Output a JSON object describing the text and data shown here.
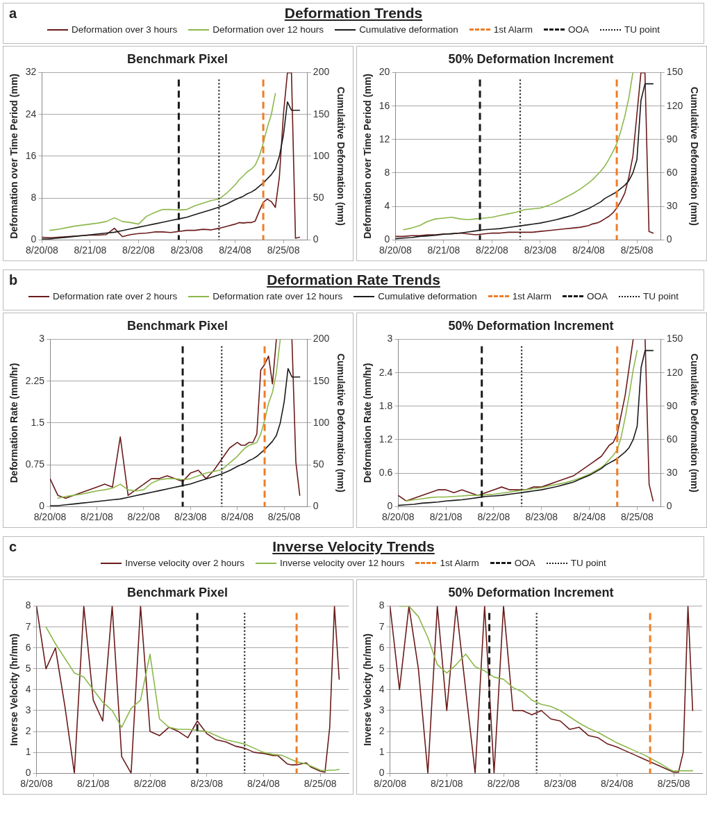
{
  "chart_data": [
    {
      "type": "line",
      "title": "Benchmark Pixel",
      "ylabel": "Deformation over Time Period (mm)",
      "y2label": "Cumulative Deformation (mm)",
      "legend": "top",
      "legend_title": "Deformation Trends",
      "annotations": [
        "a"
      ],
      "grid": "y",
      "marker": "none",
      "x": [
        "--08-20T00:00",
        "--08-20T04:00",
        "--08-20T08:00",
        "--08-20T12:00",
        "--08-20T16:00",
        "--08-20T20:00",
        "--08-21T00:00",
        "--08-21T04:00",
        "--08-21T08:00",
        "--08-21T12:00",
        "--08-21T16:00",
        "--08-21T20:00",
        "--08-22T00:00",
        "--08-22T04:00",
        "--08-22T08:00",
        "--08-22T12:00",
        "--08-22T16:00",
        "--08-22T20:00",
        "--08-23T00:00",
        "--08-23T04:00",
        "--08-23T08:00",
        "--08-23T12:00",
        "--08-23T16:00",
        "--08-23T20:00",
        "--08-24T00:00",
        "--08-24T02:00",
        "--08-24T04:00",
        "--08-24T06:00",
        "--08-24T08:00",
        "--08-24T10:00",
        "--08-24T12:00",
        "--08-24T14:00",
        "--08-24T16:00",
        "--08-24T18:00",
        "--08-24T20:00",
        "--08-24T22:00",
        "--08-25T00:00",
        "--08-25T02:00",
        "--08-25T04:00",
        "--08-25T06:00",
        "--08-25T08:00"
      ],
      "xlim": [
        "--08-20",
        "--08-25T12:00"
      ],
      "xticks": [
        {
          "value": "--08-20",
          "label": "8/20/08"
        },
        {
          "value": "--08-21",
          "label": "8/21/08"
        },
        {
          "value": "--08-22",
          "label": "8/22/08"
        },
        {
          "value": "--08-23",
          "label": "8/23/08"
        },
        {
          "value": "--08-24",
          "label": "8/24/08"
        },
        {
          "value": "--08-25",
          "label": "8/25/08"
        }
      ],
      "ylim": [
        0,
        32
      ],
      "yticks": [
        0,
        8,
        16,
        24,
        32
      ],
      "y2lim": [
        0,
        200
      ],
      "y2ticks": [
        0,
        50,
        100,
        150,
        200
      ],
      "series": [
        {
          "name": "Deformation over 3 hours",
          "color": "#6b1a1a",
          "values": [
            0.5,
            0.4,
            0.5,
            0.6,
            0.7,
            0.8,
            0.9,
            0.9,
            1.0,
            2.2,
            0.6,
            1.0,
            1.2,
            1.3,
            1.5,
            1.5,
            1.4,
            1.6,
            1.8,
            1.8,
            2.0,
            1.9,
            2.2,
            2.6,
            3.0,
            3.3,
            3.2,
            3.3,
            3.3,
            3.6,
            5.5,
            7.2,
            7.8,
            7.3,
            6.2,
            12,
            24,
            32,
            32,
            0.3,
            0.5
          ]
        },
        {
          "name": "Deformation over 12 hours",
          "color": "#8cb84a",
          "values": [
            null,
            1.8,
            2.0,
            2.3,
            2.6,
            2.8,
            3.0,
            3.2,
            3.5,
            4.2,
            3.5,
            3.3,
            3.0,
            4.5,
            5.2,
            5.8,
            5.8,
            5.7,
            5.8,
            6.5,
            7.0,
            7.5,
            7.8,
            9.0,
            10.5,
            11.5,
            12.2,
            13.0,
            13.5,
            14.3,
            16,
            18.5,
            21.5,
            24,
            28,
            null,
            null,
            null,
            null,
            null,
            null
          ]
        },
        {
          "name": "Cumulative deformation",
          "color": "#1a1a1a",
          "axis": "y2",
          "values": [
            1,
            1,
            2,
            3,
            4,
            5,
            6,
            7,
            8,
            9,
            11,
            13,
            15,
            17,
            19,
            21,
            23,
            25,
            27,
            30,
            33,
            36,
            39,
            43,
            48,
            50,
            52,
            55,
            57,
            60,
            64,
            68,
            73,
            78,
            85,
            100,
            125,
            165,
            155,
            155,
            155
          ]
        }
      ],
      "ref_lines": [
        {
          "axis": "x",
          "value": "--08-24T14:00",
          "label": "1st Alarm",
          "color": "#f07c24",
          "line_style": "dashed"
        },
        {
          "axis": "x",
          "value": "--08-22T20:00",
          "label": "OOA",
          "color": "#1a1a1a",
          "line_style": "dashed"
        },
        {
          "axis": "x",
          "value": "--08-23T16:00",
          "label": "TU point",
          "color": "#1a1a1a",
          "line_style": "dotted"
        }
      ]
    },
    {
      "type": "line",
      "title": "50% Deformation Increment",
      "ylabel": "Deformation over Time Period (mm)",
      "y2label": "Cumulative Deformation (mm)",
      "grid": "y",
      "marker": "none",
      "x": [
        "--08-20T00:00",
        "--08-20T04:00",
        "--08-20T08:00",
        "--08-20T12:00",
        "--08-20T16:00",
        "--08-20T20:00",
        "--08-21T00:00",
        "--08-21T04:00",
        "--08-21T08:00",
        "--08-21T12:00",
        "--08-21T16:00",
        "--08-21T20:00",
        "--08-22T00:00",
        "--08-22T04:00",
        "--08-22T08:00",
        "--08-22T12:00",
        "--08-22T16:00",
        "--08-22T20:00",
        "--08-23T00:00",
        "--08-23T04:00",
        "--08-23T08:00",
        "--08-23T12:00",
        "--08-23T16:00",
        "--08-23T20:00",
        "--08-24T00:00",
        "--08-24T02:00",
        "--08-24T04:00",
        "--08-24T06:00",
        "--08-24T08:00",
        "--08-24T10:00",
        "--08-24T12:00",
        "--08-24T14:00",
        "--08-24T16:00",
        "--08-24T18:00",
        "--08-24T20:00",
        "--08-24T22:00",
        "--08-25T00:00",
        "--08-25T02:00",
        "--08-25T04:00",
        "--08-25T06:00",
        "--08-25T08:00"
      ],
      "xlim": [
        "--08-20",
        "--08-25T12:00"
      ],
      "xticks": [
        {
          "value": "--08-20",
          "label": "8/20/08"
        },
        {
          "value": "--08-21",
          "label": "8/21/08"
        },
        {
          "value": "--08-22",
          "label": "8/22/08"
        },
        {
          "value": "--08-23",
          "label": "8/23/08"
        },
        {
          "value": "--08-24",
          "label": "8/24/08"
        },
        {
          "value": "--08-25",
          "label": "8/25/08"
        }
      ],
      "ylim": [
        0,
        20
      ],
      "yticks": [
        0,
        4,
        8,
        12,
        16,
        20
      ],
      "y2lim": [
        0,
        150
      ],
      "y2ticks": [
        0,
        30,
        60,
        90,
        120,
        150
      ],
      "series": [
        {
          "color": "#6b1a1a",
          "values": [
            0.4,
            0.4,
            0.5,
            0.5,
            0.6,
            0.6,
            0.7,
            0.7,
            0.8,
            0.7,
            0.6,
            0.7,
            0.8,
            0.8,
            0.9,
            0.9,
            0.9,
            0.9,
            1.0,
            1.1,
            1.2,
            1.3,
            1.4,
            1.5,
            1.7,
            1.9,
            2.0,
            2.2,
            2.5,
            2.8,
            3.2,
            3.8,
            4.6,
            5.6,
            7.5,
            10,
            15,
            20,
            20,
            1,
            0.8
          ]
        },
        {
          "color": "#8cb84a",
          "values": [
            null,
            1.2,
            1.4,
            1.7,
            2.2,
            2.5,
            2.6,
            2.7,
            2.5,
            2.4,
            2.5,
            2.6,
            2.7,
            2.9,
            3.1,
            3.3,
            3.6,
            3.7,
            3.8,
            4.1,
            4.5,
            5.0,
            5.5,
            6.1,
            6.8,
            7.2,
            7.7,
            8.2,
            8.8,
            9.6,
            10.5,
            11.5,
            13,
            14.8,
            17,
            20,
            null,
            null,
            null,
            null,
            null
          ]
        },
        {
          "color": "#1a1a1a",
          "axis": "y2",
          "values": [
            1,
            1.5,
            2,
            3,
            3.5,
            4,
            5,
            5.5,
            6,
            7,
            8,
            9,
            9.5,
            10,
            11,
            12,
            13,
            14,
            15,
            16.5,
            18,
            20,
            22,
            25,
            28,
            30,
            32,
            34,
            37,
            39,
            41,
            43,
            46,
            49,
            53,
            60,
            72,
            125,
            140,
            140,
            140
          ]
        }
      ],
      "ref_lines": [
        {
          "axis": "x",
          "value": "--08-24T14:00",
          "color": "#f07c24",
          "line_style": "dashed"
        },
        {
          "axis": "x",
          "value": "--08-21T18:00",
          "color": "#1a1a1a",
          "line_style": "dashed"
        },
        {
          "axis": "x",
          "value": "--08-22T14:00",
          "color": "#1a1a1a",
          "line_style": "dotted"
        }
      ]
    },
    {
      "type": "line",
      "title": "Benchmark Pixel",
      "ylabel": "Deformation Rate (mm/hr)",
      "y2label": "Cumulative Deformation (mm)",
      "legend": "top",
      "legend_title": "Deformation Rate Trends",
      "annotations": [
        "b"
      ],
      "grid": "y",
      "marker": "none",
      "x": [
        "--08-20T00:00",
        "--08-20T04:00",
        "--08-20T08:00",
        "--08-20T12:00",
        "--08-20T16:00",
        "--08-20T20:00",
        "--08-21T00:00",
        "--08-21T04:00",
        "--08-21T08:00",
        "--08-21T12:00",
        "--08-21T16:00",
        "--08-21T20:00",
        "--08-22T00:00",
        "--08-22T04:00",
        "--08-22T08:00",
        "--08-22T12:00",
        "--08-22T16:00",
        "--08-22T20:00",
        "--08-23T00:00",
        "--08-23T04:00",
        "--08-23T08:00",
        "--08-23T12:00",
        "--08-23T16:00",
        "--08-23T20:00",
        "--08-24T00:00",
        "--08-24T02:00",
        "--08-24T04:00",
        "--08-24T06:00",
        "--08-24T08:00",
        "--08-24T10:00",
        "--08-24T12:00",
        "--08-24T14:00",
        "--08-24T16:00",
        "--08-24T18:00",
        "--08-24T20:00",
        "--08-24T22:00",
        "--08-25T00:00",
        "--08-25T02:00",
        "--08-25T04:00",
        "--08-25T06:00",
        "--08-25T08:00"
      ],
      "xlim": [
        "--08-20",
        "--08-25T12:00"
      ],
      "xticks": [
        {
          "value": "--08-20",
          "label": "8/20/08"
        },
        {
          "value": "--08-21",
          "label": "8/21/08"
        },
        {
          "value": "--08-22",
          "label": "8/22/08"
        },
        {
          "value": "--08-23",
          "label": "8/23/08"
        },
        {
          "value": "--08-24",
          "label": "8/24/08"
        },
        {
          "value": "--08-25",
          "label": "8/25/08"
        }
      ],
      "ylim": [
        0,
        3
      ],
      "yticks": [
        0,
        0.75,
        1.5,
        2.25,
        3
      ],
      "y2lim": [
        0,
        200
      ],
      "y2ticks": [
        0,
        50,
        100,
        150,
        200
      ],
      "series": [
        {
          "name": "Deformation rate over 2 hours",
          "color": "#6b1a1a",
          "values": [
            0.5,
            0.2,
            0.15,
            0.2,
            0.25,
            0.3,
            0.35,
            0.4,
            0.35,
            1.25,
            0.2,
            0.3,
            0.4,
            0.5,
            0.5,
            0.55,
            0.5,
            0.45,
            0.6,
            0.65,
            0.5,
            0.65,
            0.85,
            1.05,
            1.15,
            1.1,
            1.1,
            1.15,
            1.15,
            1.3,
            2.45,
            2.55,
            2.7,
            2.2,
            3,
            null,
            null,
            null,
            3,
            0.8,
            0.2
          ]
        },
        {
          "name": "Deformation rate over 12 hours",
          "color": "#8cb84a",
          "values": [
            null,
            0.15,
            0.18,
            0.2,
            0.22,
            0.25,
            0.28,
            0.3,
            0.33,
            0.4,
            0.3,
            0.28,
            0.3,
            0.42,
            0.48,
            0.5,
            0.5,
            0.48,
            0.5,
            0.55,
            0.6,
            0.63,
            0.66,
            0.78,
            0.9,
            0.98,
            1.05,
            1.1,
            1.12,
            1.15,
            1.3,
            1.55,
            1.85,
            2.05,
            2.4,
            3.0,
            null,
            null,
            null,
            null,
            null
          ]
        },
        {
          "name": "Cumulative deformation",
          "color": "#1a1a1a",
          "axis": "y2",
          "values": [
            1,
            1,
            2,
            3,
            4,
            5,
            6,
            7,
            8,
            9,
            11,
            13,
            15,
            17,
            19,
            21,
            23,
            25,
            27,
            30,
            33,
            36,
            39,
            43,
            48,
            50,
            52,
            55,
            57,
            60,
            64,
            68,
            73,
            78,
            85,
            100,
            125,
            165,
            155,
            155,
            155
          ]
        }
      ],
      "ref_lines": [
        {
          "axis": "x",
          "value": "--08-24T14:00",
          "label": "1st Alarm",
          "color": "#f07c24",
          "line_style": "dashed"
        },
        {
          "axis": "x",
          "value": "--08-22T20:00",
          "label": "OOA",
          "color": "#1a1a1a",
          "line_style": "dashed"
        },
        {
          "axis": "x",
          "value": "--08-23T16:00",
          "label": "TU point",
          "color": "#1a1a1a",
          "line_style": "dotted"
        }
      ]
    },
    {
      "type": "line",
      "title": "50% Deformation Increment",
      "ylabel": "Deformation Rate (mm/hr)",
      "y2label": "Cumulative Deformation (mm)",
      "grid": "y",
      "marker": "none",
      "x": [
        "--08-20T00:00",
        "--08-20T04:00",
        "--08-20T08:00",
        "--08-20T12:00",
        "--08-20T16:00",
        "--08-20T20:00",
        "--08-21T00:00",
        "--08-21T04:00",
        "--08-21T08:00",
        "--08-21T12:00",
        "--08-21T16:00",
        "--08-21T20:00",
        "--08-22T00:00",
        "--08-22T04:00",
        "--08-22T08:00",
        "--08-22T12:00",
        "--08-22T16:00",
        "--08-22T20:00",
        "--08-23T00:00",
        "--08-23T04:00",
        "--08-23T08:00",
        "--08-23T12:00",
        "--08-23T16:00",
        "--08-23T20:00",
        "--08-24T00:00",
        "--08-24T02:00",
        "--08-24T04:00",
        "--08-24T06:00",
        "--08-24T08:00",
        "--08-24T10:00",
        "--08-24T12:00",
        "--08-24T14:00",
        "--08-24T16:00",
        "--08-24T18:00",
        "--08-24T20:00",
        "--08-24T22:00",
        "--08-25T00:00",
        "--08-25T02:00",
        "--08-25T04:00",
        "--08-25T06:00",
        "--08-25T08:00"
      ],
      "xlim": [
        "--08-20",
        "--08-25T12:00"
      ],
      "xticks": [
        {
          "value": "--08-20",
          "label": "8/20/08"
        },
        {
          "value": "--08-21",
          "label": "8/21/08"
        },
        {
          "value": "--08-22",
          "label": "8/22/08"
        },
        {
          "value": "--08-23",
          "label": "8/23/08"
        },
        {
          "value": "--08-24",
          "label": "8/24/08"
        },
        {
          "value": "--08-25",
          "label": "8/25/08"
        }
      ],
      "ylim": [
        0,
        3
      ],
      "yticks": [
        0,
        0.6,
        1.2,
        1.8,
        2.4,
        3
      ],
      "y2lim": [
        0,
        150
      ],
      "y2ticks": [
        0,
        30,
        60,
        90,
        120,
        150
      ],
      "series": [
        {
          "color": "#6b1a1a",
          "values": [
            0.2,
            0.1,
            0.15,
            0.2,
            0.25,
            0.3,
            0.3,
            0.25,
            0.3,
            0.25,
            0.2,
            0.25,
            0.3,
            0.35,
            0.3,
            0.3,
            0.3,
            0.35,
            0.35,
            0.4,
            0.45,
            0.5,
            0.55,
            0.65,
            0.75,
            0.8,
            0.85,
            0.9,
            1.0,
            1.1,
            1.15,
            1.3,
            1.65,
            2.0,
            2.5,
            3,
            null,
            null,
            3,
            0.4,
            0.1
          ]
        },
        {
          "color": "#8cb84a",
          "values": [
            null,
            0.1,
            0.12,
            0.14,
            0.16,
            0.17,
            0.17,
            0.18,
            0.19,
            0.2,
            0.2,
            0.21,
            0.22,
            0.24,
            0.26,
            0.28,
            0.3,
            0.32,
            0.34,
            0.37,
            0.4,
            0.43,
            0.47,
            0.52,
            0.58,
            0.62,
            0.66,
            0.7,
            0.76,
            0.84,
            0.92,
            1.02,
            1.25,
            1.6,
            2.0,
            2.45,
            2.8,
            null,
            null,
            null,
            null
          ]
        },
        {
          "color": "#1a1a1a",
          "axis": "y2",
          "values": [
            1,
            1.5,
            2,
            3,
            3.5,
            4,
            5,
            5.5,
            6,
            7,
            8,
            9,
            9.5,
            10,
            11,
            12,
            13,
            14,
            15,
            16.5,
            18,
            20,
            22,
            25,
            28,
            30,
            32,
            34,
            37,
            39,
            41,
            43,
            46,
            49,
            53,
            60,
            72,
            125,
            140,
            140,
            140
          ]
        }
      ],
      "ref_lines": [
        {
          "axis": "x",
          "value": "--08-24T14:00",
          "color": "#f07c24",
          "line_style": "dashed"
        },
        {
          "axis": "x",
          "value": "--08-21T18:00",
          "color": "#1a1a1a",
          "line_style": "dashed"
        },
        {
          "axis": "x",
          "value": "--08-22T14:00",
          "color": "#1a1a1a",
          "line_style": "dotted"
        }
      ]
    },
    {
      "type": "line",
      "title": "Benchmark Pixel",
      "ylabel": "Inverse Velocity (hr/mm)",
      "legend": "top",
      "legend_title": "Inverse Velocity Trends",
      "annotations": [
        "c"
      ],
      "grid": "y",
      "marker": "none",
      "x": [
        "--08-20T00:00",
        "--08-20T04:00",
        "--08-20T08:00",
        "--08-20T12:00",
        "--08-20T16:00",
        "--08-20T20:00",
        "--08-21T00:00",
        "--08-21T04:00",
        "--08-21T08:00",
        "--08-21T12:00",
        "--08-21T16:00",
        "--08-21T20:00",
        "--08-22T00:00",
        "--08-22T04:00",
        "--08-22T08:00",
        "--08-22T12:00",
        "--08-22T16:00",
        "--08-22T20:00",
        "--08-23T00:00",
        "--08-23T04:00",
        "--08-23T08:00",
        "--08-23T12:00",
        "--08-23T16:00",
        "--08-23T20:00",
        "--08-24T00:00",
        "--08-24T02:00",
        "--08-24T04:00",
        "--08-24T06:00",
        "--08-24T08:00",
        "--08-24T10:00",
        "--08-24T12:00",
        "--08-24T14:00",
        "--08-24T16:00",
        "--08-24T18:00",
        "--08-24T20:00",
        "--08-24T22:00",
        "--08-25T00:00",
        "--08-25T02:00",
        "--08-25T04:00",
        "--08-25T06:00",
        "--08-25T08:00"
      ],
      "xlim": [
        "--08-20",
        "--08-25T12:00"
      ],
      "xticks": [
        {
          "value": "--08-20",
          "label": "8/20/08"
        },
        {
          "value": "--08-21",
          "label": "8/21/08"
        },
        {
          "value": "--08-22",
          "label": "8/22/08"
        },
        {
          "value": "--08-23",
          "label": "8/23/08"
        },
        {
          "value": "--08-24",
          "label": "8/24/08"
        },
        {
          "value": "--08-25",
          "label": "8/25/08"
        }
      ],
      "ylim": [
        0,
        8
      ],
      "yticks": [
        0,
        1,
        2,
        3,
        4,
        5,
        6,
        7,
        8
      ],
      "series": [
        {
          "name": "Inverse velocity over 2 hours",
          "color": "#6b1a1a",
          "values": [
            8,
            5,
            6,
            3.2,
            0,
            8,
            3.5,
            2.5,
            8,
            0.8,
            0,
            8,
            2,
            1.8,
            2.2,
            2,
            1.7,
            2.5,
            1.9,
            1.6,
            1.5,
            1.3,
            1.2,
            1.0,
            0.95,
            0.9,
            0.85,
            0.85,
            0.65,
            0.45,
            0.4,
            0.4,
            0.45,
            0.5,
            0.3,
            0.2,
            0.1,
            0.05,
            2.2,
            8,
            4.5
          ]
        },
        {
          "name": "Inverse velocity over 12 hours",
          "color": "#8cb84a",
          "values": [
            null,
            7,
            6.2,
            5.5,
            4.8,
            4.6,
            4,
            3.4,
            3,
            2.2,
            3.1,
            3.5,
            5.7,
            2.6,
            2.2,
            2.1,
            2.1,
            2.05,
            2,
            1.8,
            1.6,
            1.5,
            1.4,
            1.2,
            1.0,
            0.95,
            0.9,
            0.88,
            0.85,
            0.75,
            0.65,
            0.55,
            0.5,
            0.45,
            0.35,
            0.25,
            0.15,
            0.12,
            0.15,
            0.15,
            0.18
          ]
        }
      ],
      "ref_lines": [
        {
          "axis": "x",
          "value": "--08-24T14:00",
          "label": "1st Alarm",
          "color": "#f07c24",
          "line_style": "dashed"
        },
        {
          "axis": "x",
          "value": "--08-22T20:00",
          "label": "OOA",
          "color": "#1a1a1a",
          "line_style": "dashed"
        },
        {
          "axis": "x",
          "value": "--08-23T16:00",
          "label": "TU point",
          "color": "#1a1a1a",
          "line_style": "dotted"
        }
      ]
    },
    {
      "type": "line",
      "title": "50% Deformation Increment",
      "ylabel": "Inverse Velocity (hr/mm)",
      "grid": "y",
      "marker": "none",
      "x": [
        "--08-20T00:00",
        "--08-20T04:00",
        "--08-20T08:00",
        "--08-20T12:00",
        "--08-20T16:00",
        "--08-20T20:00",
        "--08-21T00:00",
        "--08-21T04:00",
        "--08-21T08:00",
        "--08-21T12:00",
        "--08-21T16:00",
        "--08-21T20:00",
        "--08-22T00:00",
        "--08-22T04:00",
        "--08-22T08:00",
        "--08-22T12:00",
        "--08-22T16:00",
        "--08-22T20:00",
        "--08-23T00:00",
        "--08-23T04:00",
        "--08-23T08:00",
        "--08-23T12:00",
        "--08-23T16:00",
        "--08-23T20:00",
        "--08-24T00:00",
        "--08-24T02:00",
        "--08-24T04:00",
        "--08-24T06:00",
        "--08-24T08:00",
        "--08-24T10:00",
        "--08-24T12:00",
        "--08-24T14:00",
        "--08-24T16:00",
        "--08-24T18:00",
        "--08-24T20:00",
        "--08-24T22:00",
        "--08-25T00:00",
        "--08-25T02:00",
        "--08-25T04:00",
        "--08-25T06:00",
        "--08-25T08:00"
      ],
      "xlim": [
        "--08-20",
        "--08-25T12:00"
      ],
      "xticks": [
        {
          "value": "--08-20",
          "label": "8/20/08"
        },
        {
          "value": "--08-21",
          "label": "8/21/08"
        },
        {
          "value": "--08-22",
          "label": "8/22/08"
        },
        {
          "value": "--08-23",
          "label": "8/23/08"
        },
        {
          "value": "--08-24",
          "label": "8/24/08"
        },
        {
          "value": "--08-25",
          "label": "8/25/08"
        }
      ],
      "ylim": [
        0,
        8
      ],
      "yticks": [
        0,
        1,
        2,
        3,
        4,
        5,
        6,
        7,
        8
      ],
      "series": [
        {
          "color": "#6b1a1a",
          "values": [
            8,
            4,
            8,
            5,
            0,
            8,
            3,
            8,
            4,
            0,
            8,
            0,
            8,
            3,
            3,
            2.8,
            3.0,
            2.6,
            2.5,
            2.1,
            2.2,
            1.8,
            1.7,
            1.4,
            1.25,
            1.15,
            1.05,
            0.95,
            0.85,
            0.75,
            0.65,
            0.55,
            0.45,
            0.35,
            0.25,
            0.15,
            0.05,
            0.05,
            1.0,
            8,
            3
          ]
        },
        {
          "color": "#8cb84a",
          "values": [
            null,
            8,
            8,
            7.5,
            6.5,
            5.2,
            4.8,
            5.2,
            5.7,
            5.1,
            4.9,
            4.6,
            4.5,
            4.1,
            3.9,
            3.5,
            3.3,
            3.2,
            3.0,
            2.7,
            2.4,
            2.15,
            1.95,
            1.7,
            1.45,
            1.35,
            1.25,
            1.15,
            1.05,
            0.95,
            0.85,
            0.72,
            0.6,
            0.48,
            0.35,
            0.2,
            0.1,
            0.12,
            0.12,
            0.12,
            0.12
          ]
        }
      ],
      "ref_lines": [
        {
          "axis": "x",
          "value": "--08-24T14:00",
          "color": "#f07c24",
          "line_style": "dashed"
        },
        {
          "axis": "x",
          "value": "--08-21T18:00",
          "color": "#1a1a1a",
          "line_style": "dashed"
        },
        {
          "axis": "x",
          "value": "--08-22T14:00",
          "color": "#1a1a1a",
          "line_style": "dotted"
        }
      ]
    }
  ]
}
